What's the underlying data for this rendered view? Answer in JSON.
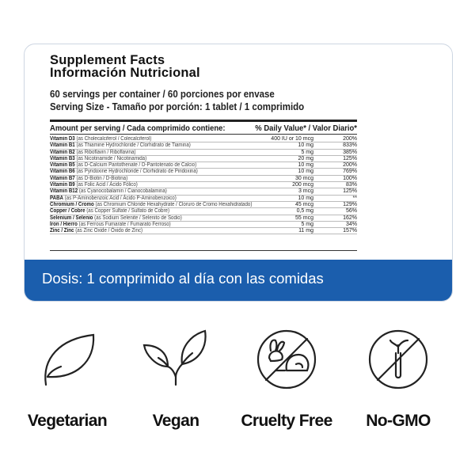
{
  "title_en": "Supplement Facts",
  "title_es": "Información Nutricional",
  "servings": "60 servings per container / 60 porciones por envase",
  "serving_size": "Serving Size - Tamaño por porción: 1 tablet / 1 comprimido",
  "header": {
    "amount": "Amount per serving / Cada comprimido contiene:",
    "dv": "% Daily Value* / Valor Diario*"
  },
  "rows": [
    {
      "name": "Vitamin D3",
      "source": "(as Cholecalciferol / Colecalciferol)",
      "amount": "400 IU or 10 mcg",
      "dv": "200%"
    },
    {
      "name": "Vitamin B1",
      "source": "(as Thiamine Hydrochloride / Clorhidrato de Tiamina)",
      "amount": "10 mg",
      "dv": "833%"
    },
    {
      "name": "Vitamin B2",
      "source": "(as Riboflavin / Riboflavina)",
      "amount": "5 mg",
      "dv": "385%"
    },
    {
      "name": "Vitamin B3",
      "source": "(as Nicotinamide / Nicotinamida)",
      "amount": "20 mg",
      "dv": "125%"
    },
    {
      "name": "Vitamin B5",
      "source": "(as D-Calcium Pantothenate / D-Pantotenato de Calcio)",
      "amount": "10 mg",
      "dv": "200%"
    },
    {
      "name": "Vitamin B6",
      "source": "(as Pyridoxine Hydrochloride / Clorhidrato de Piridoxina)",
      "amount": "10 mg",
      "dv": "769%"
    },
    {
      "name": "Vitamin B7",
      "source": "(as D-Biotin / D-Biotina)",
      "amount": "30 mcg",
      "dv": "100%"
    },
    {
      "name": "Vitamin B9",
      "source": "(as Folic Acid / Ácido Fólico)",
      "amount": "200 mcg",
      "dv": "83%"
    },
    {
      "name": "Vitamin B12",
      "source": "(as Cyanocobalamin / Cianocobalamina)",
      "amount": "3 mcg",
      "dv": "125%"
    },
    {
      "name": "PABA",
      "source": "(as P-Aminobenzoic Acid / Ácido P-Aminobenzoico)",
      "amount": "10 mg",
      "dv": "**"
    },
    {
      "name": "Chromium / Cromo",
      "source": "(as Chromium Chloride Hexahydrate / Cloruro de Cromo Hexahidratado)",
      "amount": "45 mcg",
      "dv": "129%"
    },
    {
      "name": "Copper / Cobre",
      "source": "(as Copper Sulfate / Sulfato de Cobre)",
      "amount": "0,5 mg",
      "dv": "56%"
    },
    {
      "name": "Selenium / Selenio",
      "source": "(as Sodium Selenite / Selenito de Sodio)",
      "amount": "55 mcg",
      "dv": "162%"
    },
    {
      "name": "Iron / Hierro",
      "source": "(as Ferrous Fumarate / Fumarato Ferroso)",
      "amount": "5 mg",
      "dv": "34%"
    },
    {
      "name": "Zinc / Zinc",
      "source": "(as Zinc Oxide / Óxido de Zinc)",
      "amount": "11 mg",
      "dv": "157%"
    }
  ],
  "dosage": "Dosis: 1 comprimido al día con las comidas",
  "colors": {
    "band": "#1b5ead",
    "border": "#cdd6e2"
  },
  "badges": [
    {
      "label": "Vegetarian",
      "icon": "leaf-icon"
    },
    {
      "label": "Vegan",
      "icon": "sprout-icon"
    },
    {
      "label": "Cruelty Free",
      "icon": "no-rabbit-icon"
    },
    {
      "label": "No-GMO",
      "icon": "no-gmo-icon"
    }
  ]
}
